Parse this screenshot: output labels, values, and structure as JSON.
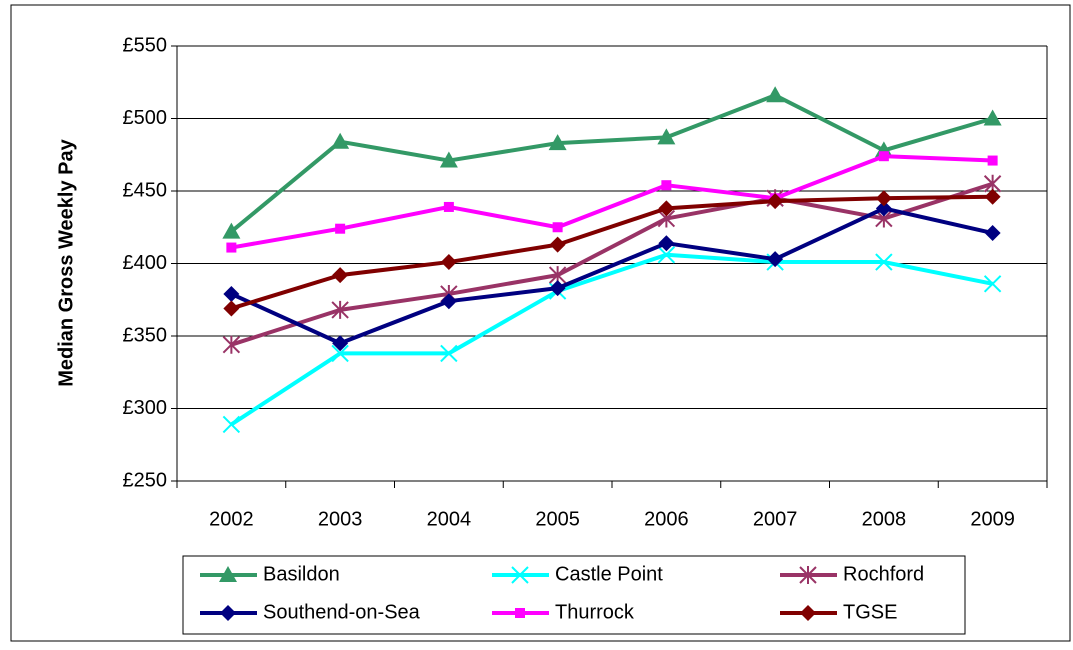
{
  "chart_data": {
    "type": "line",
    "y_label": "Median Gross Weekly Pay",
    "categories": [
      "2002",
      "2003",
      "2004",
      "2005",
      "2006",
      "2007",
      "2008",
      "2009"
    ],
    "series": [
      {
        "name": "Basildon",
        "color": "#339966",
        "marker": "triangle",
        "values": [
          422,
          484,
          471,
          483,
          487,
          516,
          478,
          500
        ]
      },
      {
        "name": "Castle Point",
        "color": "#00ffff",
        "marker": "x",
        "values": [
          289,
          338,
          338,
          381,
          406,
          401,
          401,
          386
        ]
      },
      {
        "name": "Rochford",
        "color": "#993366",
        "marker": "star",
        "values": [
          344,
          368,
          379,
          392,
          431,
          445,
          431,
          455
        ]
      },
      {
        "name": "Southend-on-Sea",
        "color": "#000080",
        "marker": "diamond",
        "values": [
          379,
          345,
          374,
          383,
          414,
          403,
          438,
          421
        ]
      },
      {
        "name": "Thurrock",
        "color": "#ff00ff",
        "marker": "square",
        "values": [
          411,
          424,
          439,
          425,
          454,
          445,
          474,
          471
        ]
      },
      {
        "name": "TGSE",
        "color": "#800000",
        "marker": "diamond",
        "values": [
          369,
          392,
          401,
          413,
          438,
          443,
          445,
          446
        ]
      }
    ],
    "ylim": [
      250,
      550
    ],
    "yticks": [
      {
        "value": 250,
        "label": "£250"
      },
      {
        "value": 300,
        "label": "£300"
      },
      {
        "value": 350,
        "label": "£350"
      },
      {
        "value": 400,
        "label": "£400"
      },
      {
        "value": 450,
        "label": "£450"
      },
      {
        "value": 500,
        "label": "£500"
      },
      {
        "value": 550,
        "label": "£550"
      }
    ],
    "grid": true,
    "legend": "bottom"
  }
}
